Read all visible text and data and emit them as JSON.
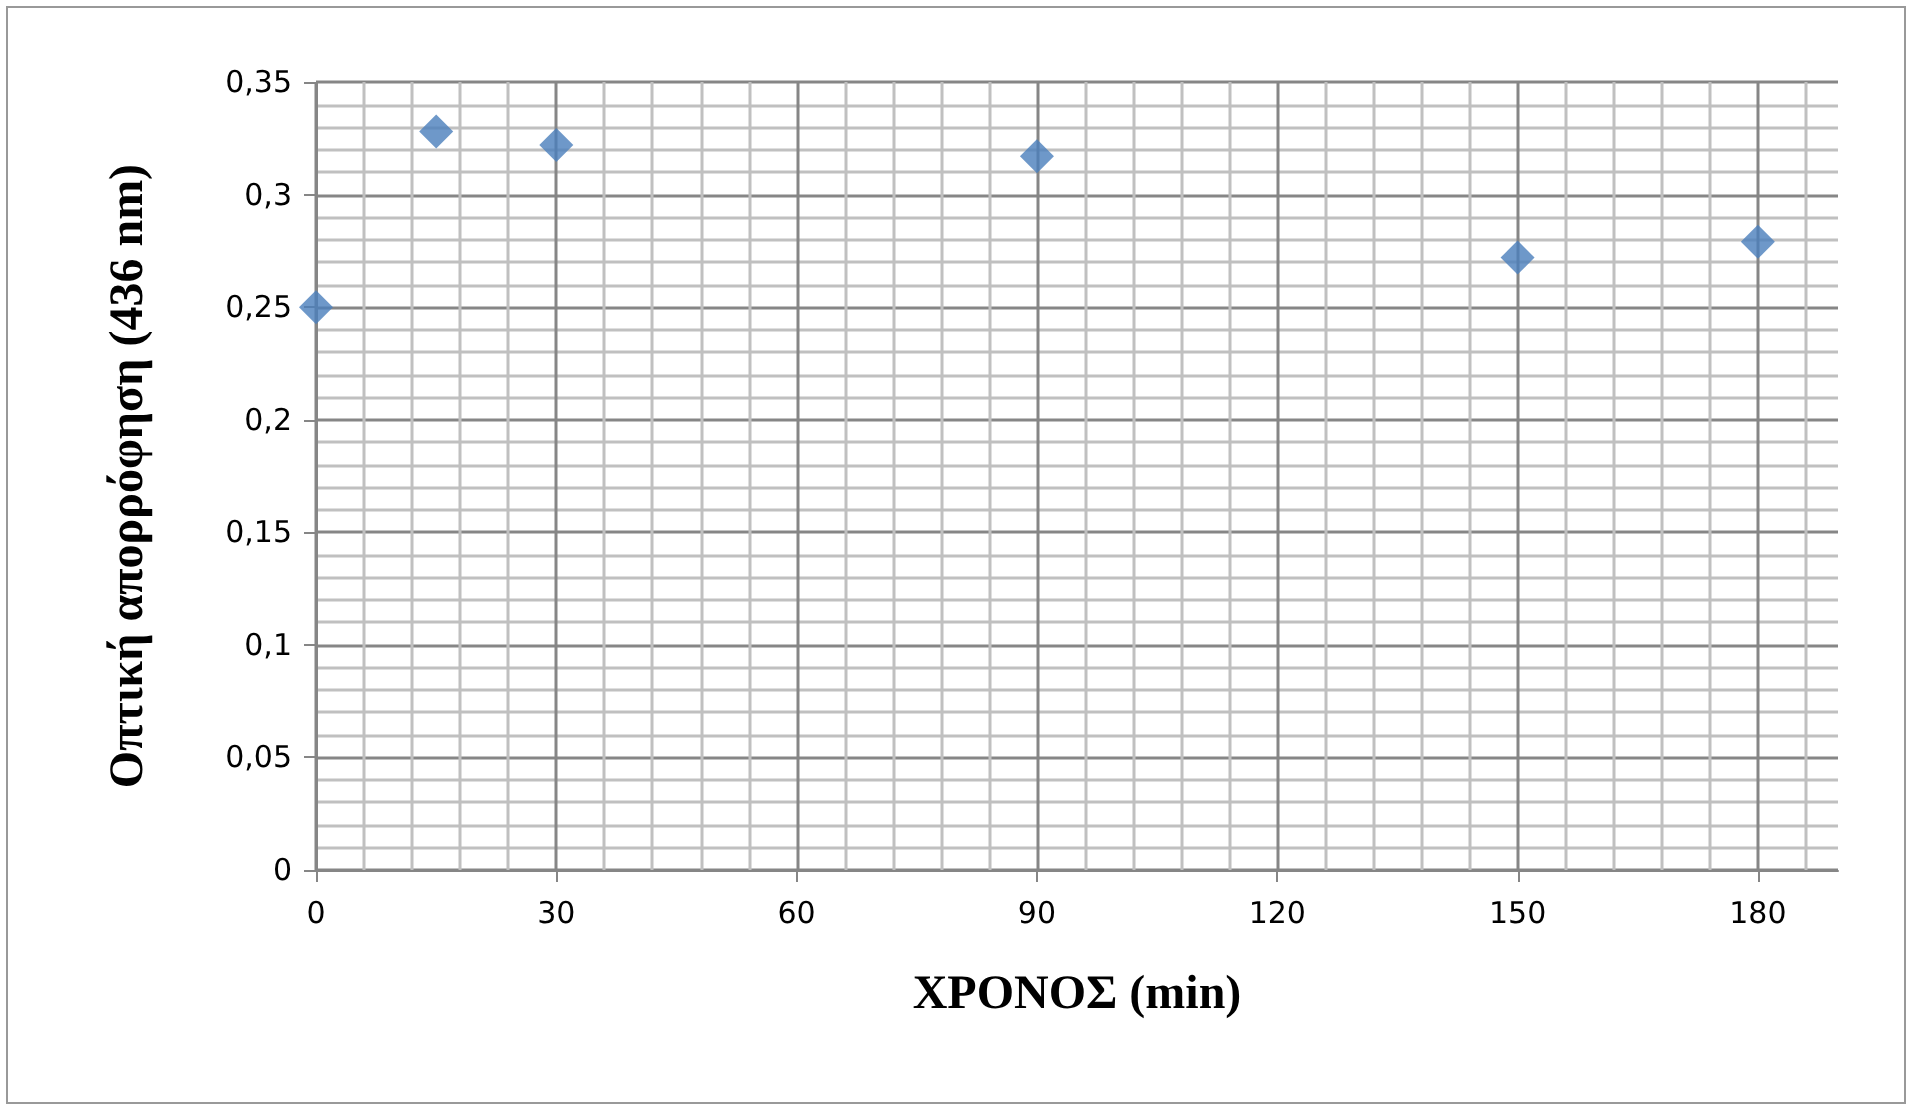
{
  "chart_data": {
    "type": "scatter",
    "xlabel": "ΧΡΟΝΟΣ (min)",
    "ylabel": "Οπτική απορρόφηση (436 nm)",
    "x": [
      0,
      15,
      30,
      90,
      150,
      180
    ],
    "series": [
      {
        "color": "#4a7ebb",
        "values": [
          0.25,
          0.328,
          0.322,
          0.317,
          0.272,
          0.279
        ]
      }
    ],
    "marker": "diamond",
    "grid": true,
    "xlim": [
      0,
      190
    ],
    "xticks": [
      0,
      {
        "value": 6,
        "label": null
      },
      {
        "value": 12,
        "label": null
      },
      {
        "value": 18,
        "label": null
      },
      {
        "value": 24,
        "label": null
      },
      30,
      {
        "value": 36,
        "label": null
      },
      {
        "value": 42,
        "label": null
      },
      {
        "value": 48,
        "label": null
      },
      {
        "value": 54,
        "label": null
      },
      60,
      {
        "value": 66,
        "label": null
      },
      {
        "value": 72,
        "label": null
      },
      {
        "value": 78,
        "label": null
      },
      {
        "value": 84,
        "label": null
      },
      90,
      {
        "value": 96,
        "label": null
      },
      {
        "value": 102,
        "label": null
      },
      {
        "value": 108,
        "label": null
      },
      {
        "value": 114,
        "label": null
      },
      120,
      {
        "value": 126,
        "label": null
      },
      {
        "value": 132,
        "label": null
      },
      {
        "value": 138,
        "label": null
      },
      {
        "value": 144,
        "label": null
      },
      150,
      {
        "value": 156,
        "label": null
      },
      {
        "value": 162,
        "label": null
      },
      {
        "value": 168,
        "label": null
      },
      {
        "value": 174,
        "label": null
      },
      180,
      {
        "value": 186,
        "label": null
      }
    ],
    "ylim": [
      0,
      0.35
    ],
    "yticks": [
      0,
      {
        "value": 0.01,
        "label": null
      },
      {
        "value": 0.02,
        "label": null
      },
      {
        "value": 0.03,
        "label": null
      },
      {
        "value": 0.04,
        "label": null
      },
      {
        "value": 0.05,
        "label": "0,05"
      },
      {
        "value": 0.06,
        "label": null
      },
      {
        "value": 0.07,
        "label": null
      },
      {
        "value": 0.08,
        "label": null
      },
      {
        "value": 0.09,
        "label": null
      },
      {
        "value": 0.1,
        "label": "0,1"
      },
      {
        "value": 0.11,
        "label": null
      },
      {
        "value": 0.12,
        "label": null
      },
      {
        "value": 0.13,
        "label": null
      },
      {
        "value": 0.14,
        "label": null
      },
      {
        "value": 0.15,
        "label": "0,15"
      },
      {
        "value": 0.16,
        "label": null
      },
      {
        "value": 0.17,
        "label": null
      },
      {
        "value": 0.18,
        "label": null
      },
      {
        "value": 0.19,
        "label": null
      },
      {
        "value": 0.2,
        "label": "0,2"
      },
      {
        "value": 0.21,
        "label": null
      },
      {
        "value": 0.22,
        "label": null
      },
      {
        "value": 0.23,
        "label": null
      },
      {
        "value": 0.24,
        "label": null
      },
      {
        "value": 0.25,
        "label": "0,25"
      },
      {
        "value": 0.26,
        "label": null
      },
      {
        "value": 0.27,
        "label": null
      },
      {
        "value": 0.28,
        "label": null
      },
      {
        "value": 0.29,
        "label": null
      },
      {
        "value": 0.3,
        "label": "0,3"
      },
      {
        "value": 0.31,
        "label": null
      },
      {
        "value": 0.32,
        "label": null
      },
      {
        "value": 0.33,
        "label": null
      },
      {
        "value": 0.34,
        "label": null
      },
      {
        "value": 0.35,
        "label": "0,35"
      }
    ]
  }
}
